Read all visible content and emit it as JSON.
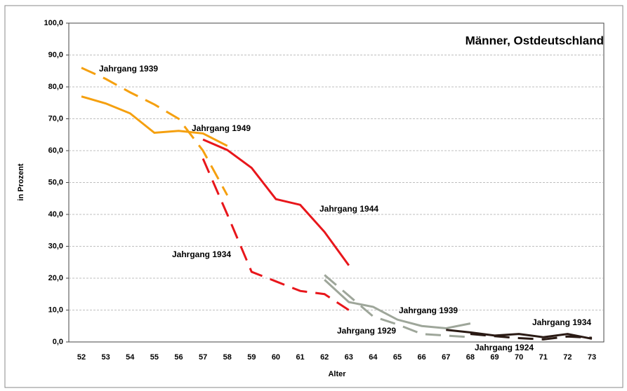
{
  "chart_data": {
    "type": "line",
    "annotation": "Männer, Ostdeutschland",
    "x_label": "Alter",
    "y_label": "in Prozent",
    "categories": [
      "52",
      "53",
      "54",
      "55",
      "56",
      "57",
      "58",
      "59",
      "60",
      "61",
      "62",
      "63",
      "64",
      "65",
      "66",
      "67",
      "68",
      "69",
      "70",
      "71",
      "72",
      "73"
    ],
    "ylim": [
      0,
      100
    ],
    "yticks": [
      {
        "value": 0,
        "label": "0,0"
      },
      {
        "value": 10,
        "label": "10,0"
      },
      {
        "value": 20,
        "label": "20,0"
      },
      {
        "value": 30,
        "label": "30,0"
      },
      {
        "value": 40,
        "label": "40,0"
      },
      {
        "value": 50,
        "label": "50,0"
      },
      {
        "value": 60,
        "label": "60,0"
      },
      {
        "value": 70,
        "label": "70,0"
      },
      {
        "value": 80,
        "label": "80,0"
      },
      {
        "value": 90,
        "label": "90,0"
      },
      {
        "value": 100,
        "label": "100,0"
      }
    ],
    "grid": true,
    "series": [
      {
        "name": "Jahrgang 1949",
        "color": "#f5a00f",
        "dash": false,
        "values": [
          77,
          74.8,
          71.7,
          65.6,
          66.2,
          65.4,
          61.5,
          null,
          null,
          null,
          null,
          null,
          null,
          null,
          null,
          null,
          null,
          null,
          null,
          null,
          null,
          null
        ]
      },
      {
        "name": "Jahrgang 1939",
        "color": "#f5a00f",
        "dash": true,
        "values": [
          86,
          82.5,
          78.3,
          74.5,
          70,
          60,
          46,
          null,
          null,
          null,
          null,
          null,
          null,
          null,
          null,
          null,
          null,
          null,
          null,
          null,
          null,
          null
        ]
      },
      {
        "name": "Jahrgang 1944",
        "color": "#e8161b",
        "dash": false,
        "values": [
          null,
          null,
          null,
          null,
          null,
          63.5,
          60.2,
          54.6,
          44.8,
          43,
          34.5,
          24,
          null,
          null,
          null,
          null,
          null,
          null,
          null,
          null,
          null,
          null
        ]
      },
      {
        "name": "Jahrgang 1934",
        "color": "#e8161b",
        "dash": true,
        "values": [
          null,
          null,
          null,
          null,
          null,
          57.5,
          40,
          22,
          19,
          16,
          15,
          10,
          null,
          null,
          null,
          null,
          null,
          null,
          null,
          null,
          null,
          null
        ]
      },
      {
        "name": "Jahrgang 1939",
        "color": "#9ea69a",
        "dash": false,
        "values": [
          null,
          null,
          null,
          null,
          null,
          null,
          null,
          null,
          null,
          null,
          19.5,
          12.5,
          11,
          7,
          5,
          4.3,
          5.8,
          null,
          null,
          null,
          null,
          null
        ]
      },
      {
        "name": "Jahrgang 1929",
        "color": "#9ea69a",
        "dash": true,
        "values": [
          null,
          null,
          null,
          null,
          null,
          null,
          null,
          null,
          null,
          null,
          21,
          14.5,
          8,
          5.5,
          2.5,
          2,
          1.5,
          null,
          null,
          null,
          null,
          null
        ]
      },
      {
        "name": "Jahrgang 1934",
        "color": "#2a1a14",
        "dash": false,
        "values": [
          null,
          null,
          null,
          null,
          null,
          null,
          null,
          null,
          null,
          null,
          null,
          null,
          null,
          null,
          null,
          3.8,
          3,
          2,
          2.5,
          1.5,
          2.5,
          1
        ]
      },
      {
        "name": "Jahrgang 1924",
        "color": "#2a1a14",
        "dash": true,
        "values": [
          null,
          null,
          null,
          null,
          null,
          null,
          null,
          null,
          null,
          null,
          null,
          null,
          null,
          null,
          null,
          null,
          2.5,
          1.8,
          1.2,
          0.8,
          1.7,
          1.3
        ]
      }
    ]
  }
}
